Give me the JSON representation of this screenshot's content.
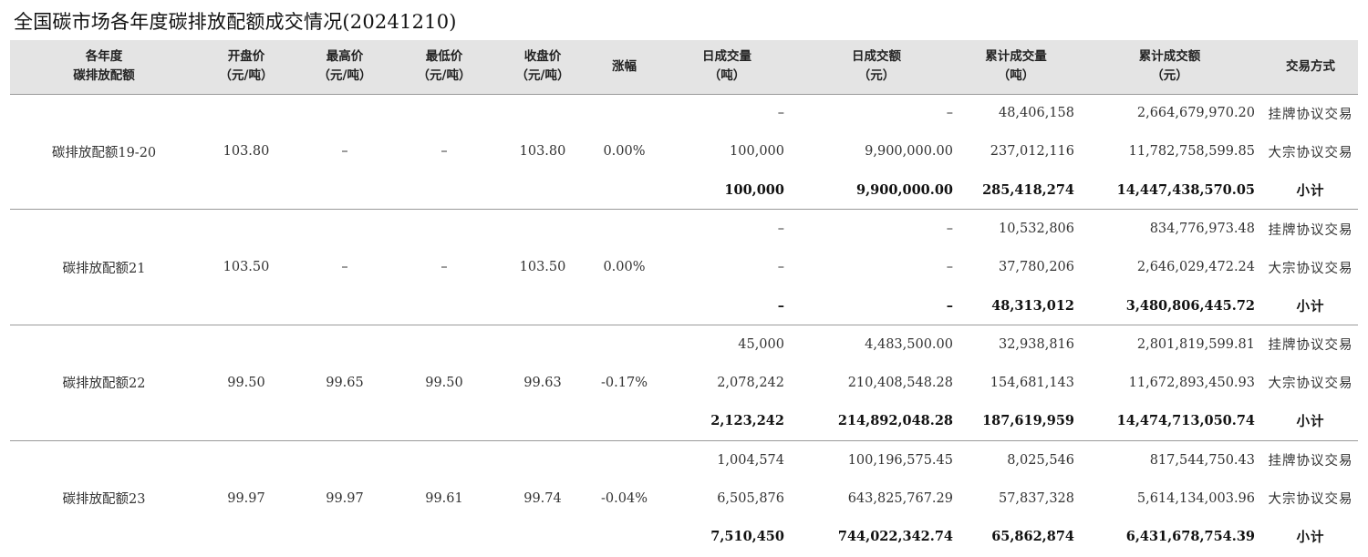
{
  "title": "全国碳市场各年度碳排放配额成交情况(20241210)",
  "headers": [
    {
      "line1": "各年度",
      "line2": "碳排放配额"
    },
    {
      "line1": "开盘价",
      "line2": "（元/吨）"
    },
    {
      "line1": "最高价",
      "line2": "（元/吨）"
    },
    {
      "line1": "最低价",
      "line2": "（元/吨）"
    },
    {
      "line1": "收盘价",
      "line2": "（元/吨）"
    },
    {
      "line1": "涨幅",
      "line2": ""
    },
    {
      "line1": "日成交量",
      "line2": "（吨）"
    },
    {
      "line1": "日成交额",
      "line2": "（元）"
    },
    {
      "line1": "累计成交量",
      "line2": "（吨）"
    },
    {
      "line1": "累计成交额",
      "line2": "（元）"
    },
    {
      "line1": "交易方式",
      "line2": ""
    }
  ],
  "groups": [
    {
      "name": "碳排放配额19-20",
      "open": "103.80",
      "high": "–",
      "low": "–",
      "close": "103.80",
      "change": "0.00%",
      "rows": [
        {
          "daily_volume": "–",
          "daily_amount": "–",
          "cum_volume": "48,406,158",
          "cum_amount": "2,664,679,970.20",
          "method": "挂牌协议交易"
        },
        {
          "daily_volume": "100,000",
          "daily_amount": "9,900,000.00",
          "cum_volume": "237,012,116",
          "cum_amount": "11,782,758,599.85",
          "method": "大宗协议交易"
        },
        {
          "daily_volume": "100,000",
          "daily_amount": "9,900,000.00",
          "cum_volume": "285,418,274",
          "cum_amount": "14,447,438,570.05",
          "method": "小计"
        }
      ]
    },
    {
      "name": "碳排放配额21",
      "open": "103.50",
      "high": "–",
      "low": "–",
      "close": "103.50",
      "change": "0.00%",
      "rows": [
        {
          "daily_volume": "–",
          "daily_amount": "–",
          "cum_volume": "10,532,806",
          "cum_amount": "834,776,973.48",
          "method": "挂牌协议交易"
        },
        {
          "daily_volume": "–",
          "daily_amount": "–",
          "cum_volume": "37,780,206",
          "cum_amount": "2,646,029,472.24",
          "method": "大宗协议交易"
        },
        {
          "daily_volume": "–",
          "daily_amount": "–",
          "cum_volume": "48,313,012",
          "cum_amount": "3,480,806,445.72",
          "method": "小计"
        }
      ]
    },
    {
      "name": "碳排放配额22",
      "open": "99.50",
      "high": "99.65",
      "low": "99.50",
      "close": "99.63",
      "change": "-0.17%",
      "rows": [
        {
          "daily_volume": "45,000",
          "daily_amount": "4,483,500.00",
          "cum_volume": "32,938,816",
          "cum_amount": "2,801,819,599.81",
          "method": "挂牌协议交易"
        },
        {
          "daily_volume": "2,078,242",
          "daily_amount": "210,408,548.28",
          "cum_volume": "154,681,143",
          "cum_amount": "11,672,893,450.93",
          "method": "大宗协议交易"
        },
        {
          "daily_volume": "2,123,242",
          "daily_amount": "214,892,048.28",
          "cum_volume": "187,619,959",
          "cum_amount": "14,474,713,050.74",
          "method": "小计"
        }
      ]
    },
    {
      "name": "碳排放配额23",
      "open": "99.97",
      "high": "99.97",
      "low": "99.61",
      "close": "99.74",
      "change": "-0.04%",
      "rows": [
        {
          "daily_volume": "1,004,574",
          "daily_amount": "100,196,575.45",
          "cum_volume": "8,025,546",
          "cum_amount": "817,544,750.43",
          "method": "挂牌协议交易"
        },
        {
          "daily_volume": "6,505,876",
          "daily_amount": "643,825,767.29",
          "cum_volume": "57,837,328",
          "cum_amount": "5,614,134,003.96",
          "method": "大宗协议交易"
        },
        {
          "daily_volume": "7,510,450",
          "daily_amount": "744,022,342.74",
          "cum_volume": "65,862,874",
          "cum_amount": "6,431,678,754.39",
          "method": "小计"
        }
      ]
    }
  ]
}
